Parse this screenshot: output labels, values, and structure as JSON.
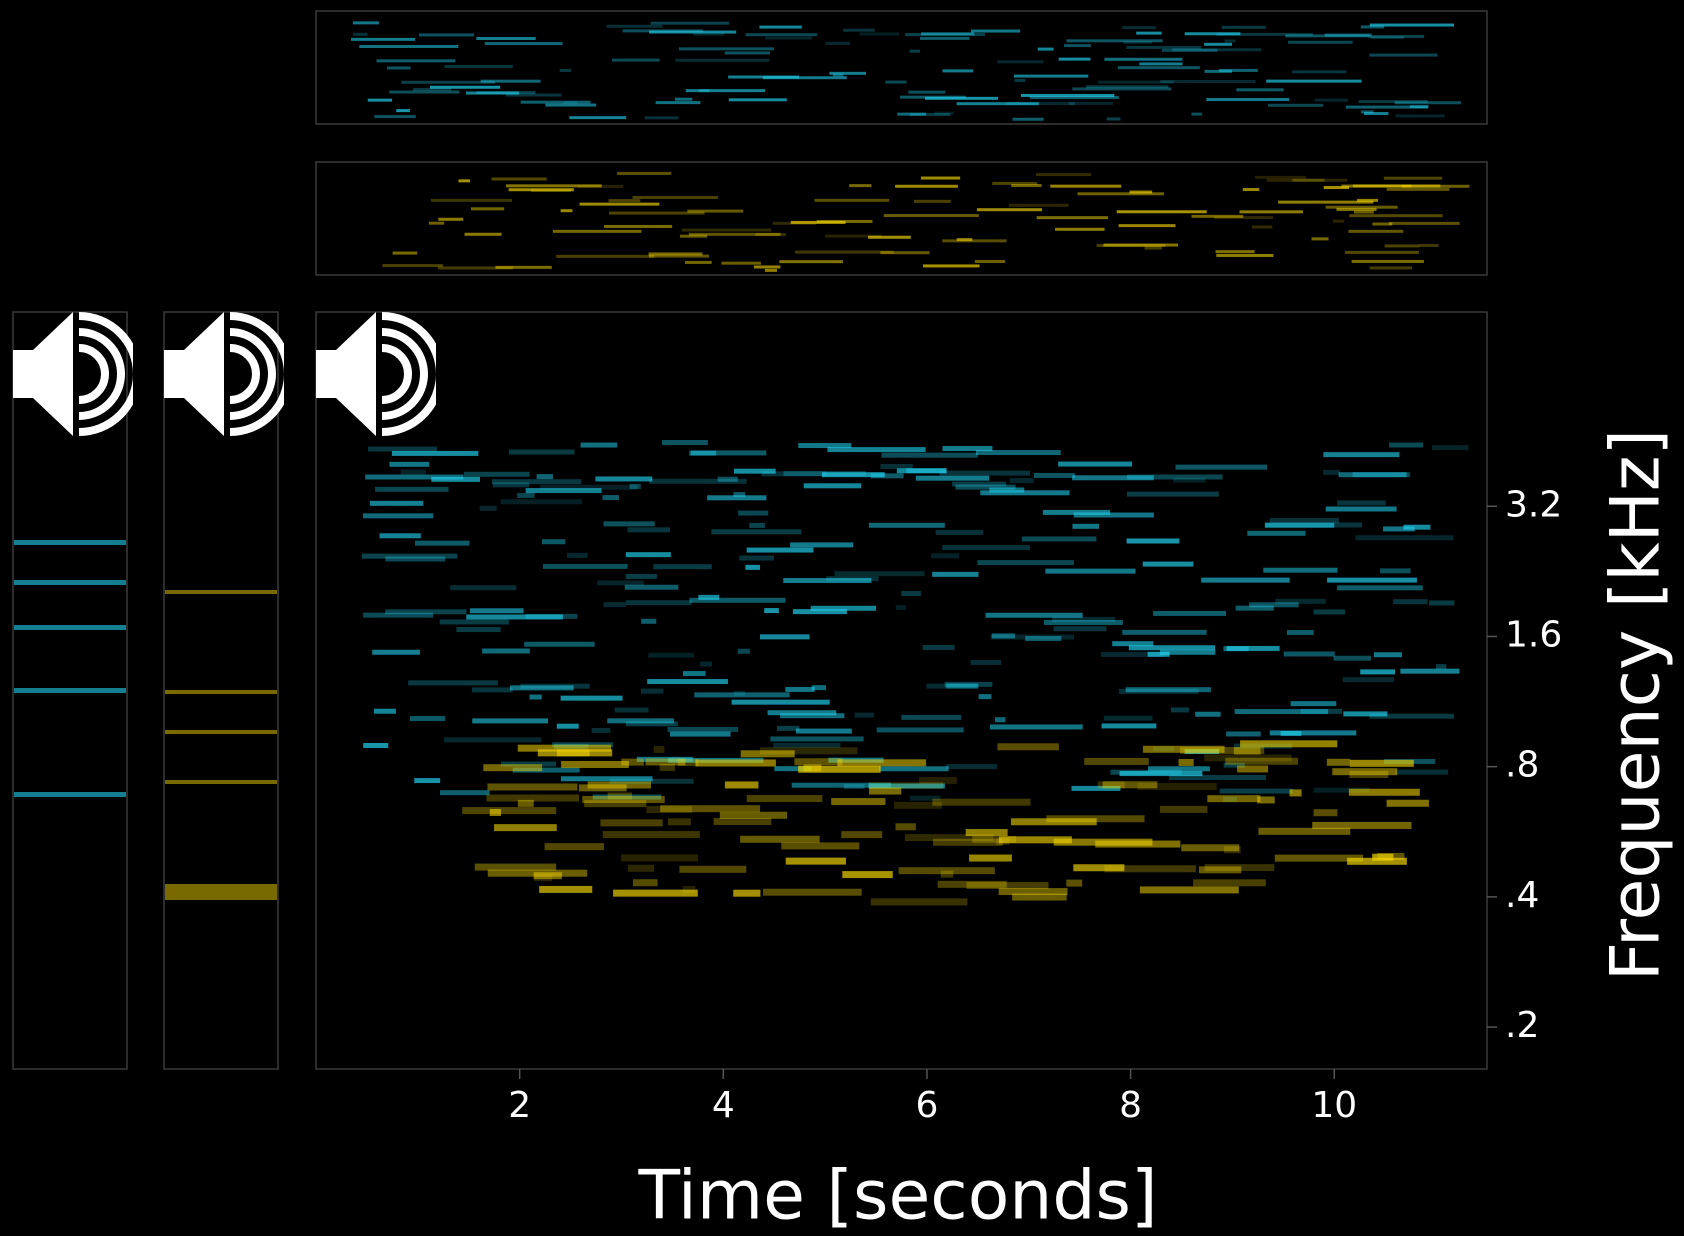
{
  "chart_data": {
    "type": "spectrogram",
    "x_label": "Time [seconds]",
    "y_label": "Frequency [kHz]",
    "xlim": [
      0,
      11.5
    ],
    "xticks": [
      2,
      4,
      6,
      8,
      10
    ],
    "ylim": [
      0.16,
      9.0
    ],
    "y_scale": "log",
    "yticks": [
      {
        "value": 0.2,
        "label": ".2"
      },
      {
        "value": 0.4,
        "label": ".4"
      },
      {
        "value": 0.8,
        "label": ".8"
      },
      1.6,
      3.2
    ],
    "colors": [
      "#22d4f2",
      "#f2d400"
    ]
  }
}
